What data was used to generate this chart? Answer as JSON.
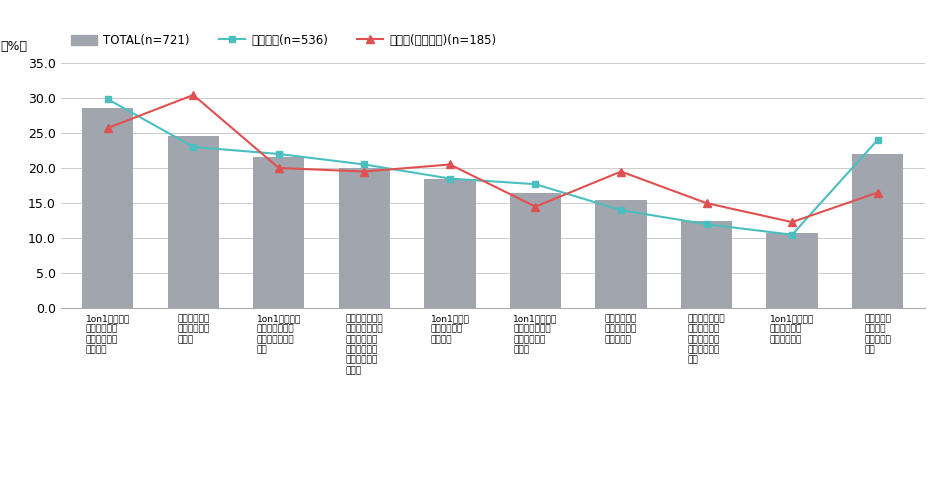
{
  "categories": [
    "1on1の効果や\n成果が見える\n／感じる仕組\nみを作る",
    "上司を対象と\nした教育を実\n施する",
    "1on1を実施す\nるために業務量\nを減らす・調整\nする",
    "インセンティブ\nやポイント等、\n実施した人が\n得する／評価\nされる仕組み\nを作る",
    "1on1の実施\nができる場所\nを増やす",
    "1on1に対して\n経営層・上位層\nが関心を持つ\n／示す",
    "メンバーを対\n象とした教育\nを実施する",
    "運営を効率的・\n効果的に行え\nるシステムや\nツールを導入\nする",
    "1on1のペアの\n組み合わせを\n柔軟に見直す",
    "あてはまる\nことはな\nい・分から\nない"
  ],
  "total": [
    28.5,
    24.5,
    21.5,
    20.0,
    18.5,
    16.5,
    15.5,
    12.5,
    10.8,
    22.0
  ],
  "general": [
    29.8,
    23.0,
    22.0,
    20.5,
    18.5,
    17.7,
    14.0,
    12.0,
    10.5,
    24.0
  ],
  "manager": [
    25.7,
    30.4,
    20.0,
    19.5,
    20.5,
    14.5,
    19.5,
    15.0,
    12.3,
    16.5
  ],
  "bar_color": "#a0a5ae",
  "line_color_general": "#4bbfbf",
  "line_color_manager": "#e05050",
  "ylabel": "（%）",
  "ylim": [
    0,
    35.0
  ],
  "yticks": [
    0.0,
    5.0,
    10.0,
    15.0,
    20.0,
    25.0,
    30.0,
    35.0
  ],
  "legend_total": "TOTAL(n=721)",
  "legend_general": "一般社員(n=536)",
  "legend_manager": "管理職(課長以上)(n=185)"
}
